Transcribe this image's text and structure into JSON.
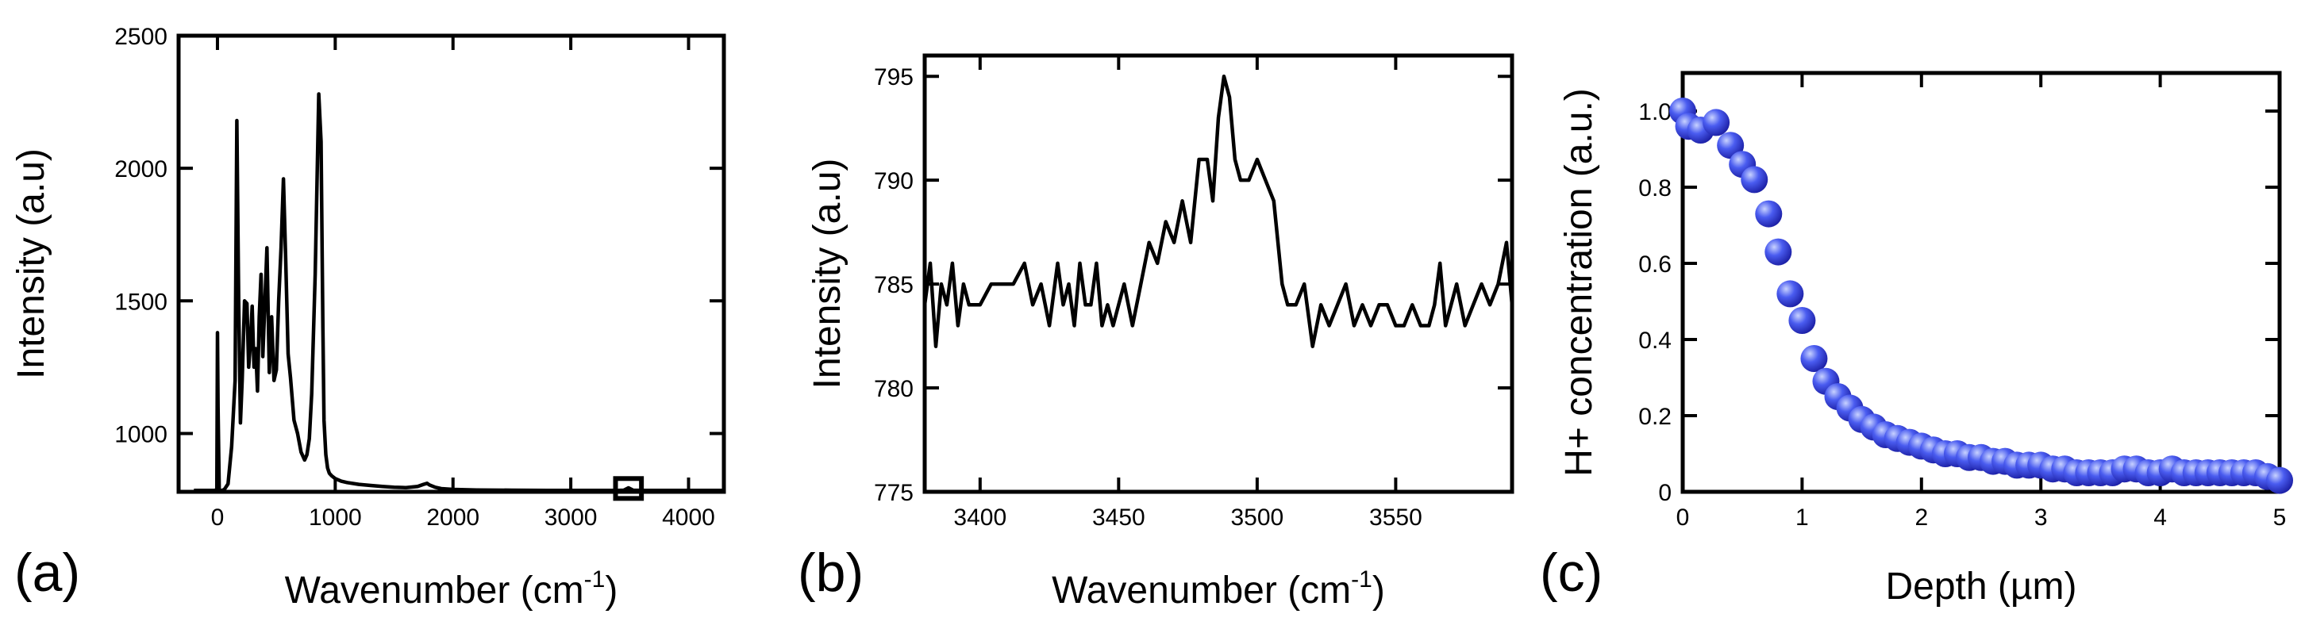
{
  "figure": {
    "panel_labels": [
      "(a)",
      "(b)",
      "(c)"
    ]
  },
  "colors": {
    "trace": "#000000",
    "dot_fill_light": "#c8d2ff",
    "dot_fill_mid": "#4a5cf0",
    "dot_fill_dark": "#1e22a8"
  },
  "chart_data": [
    {
      "type": "line",
      "panel": "(a)",
      "title": "",
      "xlabel": "Wavenumber (cm",
      "xlabel_sup": "-1",
      "xlabel_close": ")",
      "ylabel": "Intensity (a.u)",
      "xlim": [
        -330,
        4300
      ],
      "ylim": [
        780,
        2500
      ],
      "xticks": [
        0,
        1000,
        2000,
        3000,
        4000
      ],
      "xtick_labels": [
        "0",
        "1000",
        "2000",
        "3000",
        "4000"
      ],
      "yticks": [
        1000,
        1500,
        2000,
        2500
      ],
      "ytick_labels": [
        "1000",
        "1500",
        "2000",
        "2500"
      ],
      "grid": false,
      "series": [
        {
          "x": [
            -200,
            -20,
            -5,
            0,
            5,
            15,
            40,
            60,
            90,
            120,
            150,
            165,
            180,
            195,
            210,
            230,
            250,
            265,
            280,
            295,
            310,
            325,
            340,
            355,
            370,
            385,
            400,
            420,
            440,
            460,
            480,
            500,
            520,
            540,
            560,
            580,
            600,
            620,
            650,
            680,
            710,
            740,
            760,
            780,
            800,
            830,
            860,
            880,
            895,
            905,
            920,
            935,
            950,
            970,
            1000,
            1050,
            1100,
            1200,
            1300,
            1400,
            1500,
            1600,
            1700,
            1750,
            1780,
            1800,
            1850,
            1900,
            2000,
            2200,
            2500,
            2800,
            3000,
            3200,
            3400,
            3450,
            3490,
            3530,
            3600,
            3800,
            4000,
            4100,
            4200,
            4300
          ],
          "y": [
            785,
            785,
            790,
            1380,
            1100,
            785,
            785,
            790,
            810,
            950,
            1200,
            2180,
            1500,
            1040,
            1200,
            1500,
            1490,
            1250,
            1340,
            1480,
            1250,
            1320,
            1160,
            1440,
            1600,
            1290,
            1460,
            1700,
            1230,
            1440,
            1200,
            1240,
            1500,
            1700,
            1960,
            1650,
            1300,
            1210,
            1050,
            1000,
            930,
            900,
            920,
            980,
            1150,
            1600,
            2280,
            2100,
            1400,
            1050,
            920,
            870,
            850,
            840,
            830,
            820,
            815,
            808,
            804,
            800,
            797,
            796,
            800,
            808,
            812,
            806,
            797,
            792,
            789,
            787,
            786,
            785,
            785,
            785,
            785,
            786,
            795,
            786,
            785,
            785,
            785,
            785,
            785,
            785
          ]
        }
      ],
      "annotation": "inset-region-box",
      "box_x_range": [
        3380,
        3600
      ],
      "box_y_range": [
        755,
        830
      ]
    },
    {
      "type": "line",
      "panel": "(b)",
      "title": "",
      "xlabel": "Wavenumber (cm",
      "xlabel_sup": "-1",
      "xlabel_close": ")",
      "ylabel": "Intensity (a.u)",
      "xlim": [
        3380,
        3592
      ],
      "ylim": [
        775,
        796
      ],
      "xticks": [
        3400,
        3450,
        3500,
        3550
      ],
      "xtick_labels": [
        "3400",
        "3450",
        "3500",
        "3550"
      ],
      "yticks": [
        775,
        780,
        785,
        790,
        795
      ],
      "ytick_labels": [
        "775",
        "780",
        "785",
        "790",
        "795"
      ],
      "grid": false,
      "series": [
        {
          "x": [
            3380,
            3382,
            3384,
            3386,
            3388,
            3390,
            3392,
            3394,
            3396,
            3400,
            3404,
            3408,
            3412,
            3416,
            3419,
            3422,
            3425,
            3428,
            3430,
            3432,
            3434,
            3436,
            3438,
            3440,
            3442,
            3444,
            3446,
            3448,
            3450,
            3452,
            3455,
            3458,
            3461,
            3464,
            3467,
            3470,
            3473,
            3476,
            3479,
            3482,
            3484,
            3486,
            3488,
            3490,
            3492,
            3494,
            3497,
            3500,
            3503,
            3506,
            3509,
            3511,
            3514,
            3517,
            3520,
            3523,
            3526,
            3529,
            3532,
            3535,
            3538,
            3541,
            3544,
            3547,
            3550,
            3553,
            3556,
            3559,
            3562,
            3564,
            3566,
            3568,
            3570,
            3572,
            3575,
            3578,
            3581,
            3584,
            3587,
            3590,
            3592
          ],
          "y": [
            784,
            786,
            782,
            785,
            784,
            786,
            783,
            785,
            784,
            784,
            785,
            785,
            785,
            786,
            784,
            785,
            783,
            786,
            784,
            785,
            783,
            786,
            784,
            784,
            786,
            783,
            784,
            783,
            784,
            785,
            783,
            785,
            787,
            786,
            788,
            787,
            789,
            787,
            791,
            791,
            789,
            793,
            795,
            794,
            791,
            790,
            790,
            791,
            790,
            789,
            785,
            784,
            784,
            785,
            782,
            784,
            783,
            784,
            785,
            783,
            784,
            783,
            784,
            784,
            783,
            783,
            784,
            783,
            783,
            784,
            786,
            783,
            784,
            785,
            783,
            784,
            785,
            784,
            785,
            787,
            784
          ]
        }
      ]
    },
    {
      "type": "scatter",
      "panel": "(c)",
      "title": "",
      "xlabel": "Depth (µm)",
      "ylabel": "H+ concentration (a.u.)",
      "xlim": [
        0,
        5
      ],
      "ylim": [
        0,
        1.1
      ],
      "xticks": [
        0,
        1,
        2,
        3,
        4,
        5
      ],
      "xtick_labels": [
        "0",
        "1",
        "2",
        "3",
        "4",
        "5"
      ],
      "yticks": [
        0,
        0.2,
        0.4,
        0.6,
        0.8,
        1.0
      ],
      "ytick_labels": [
        "0",
        "0.2",
        "0.4",
        "0.6",
        "0.8",
        "1.0"
      ],
      "grid": false,
      "series": [
        {
          "x": [
            0.0,
            0.05,
            0.15,
            0.28,
            0.4,
            0.5,
            0.6,
            0.72,
            0.8,
            0.9,
            1.0,
            1.1,
            1.2,
            1.3,
            1.4,
            1.5,
            1.6,
            1.7,
            1.8,
            1.9,
            2.0,
            2.1,
            2.2,
            2.3,
            2.4,
            2.5,
            2.6,
            2.7,
            2.8,
            2.9,
            3.0,
            3.1,
            3.2,
            3.3,
            3.4,
            3.5,
            3.6,
            3.7,
            3.8,
            3.9,
            4.0,
            4.1,
            4.2,
            4.3,
            4.4,
            4.5,
            4.6,
            4.7,
            4.8,
            4.9,
            5.0
          ],
          "y": [
            1.0,
            0.96,
            0.95,
            0.97,
            0.91,
            0.86,
            0.82,
            0.73,
            0.63,
            0.52,
            0.45,
            0.35,
            0.29,
            0.25,
            0.22,
            0.19,
            0.17,
            0.15,
            0.14,
            0.13,
            0.12,
            0.11,
            0.1,
            0.1,
            0.09,
            0.09,
            0.08,
            0.08,
            0.07,
            0.07,
            0.07,
            0.06,
            0.06,
            0.05,
            0.05,
            0.05,
            0.05,
            0.06,
            0.06,
            0.05,
            0.05,
            0.06,
            0.05,
            0.05,
            0.05,
            0.05,
            0.05,
            0.05,
            0.05,
            0.04,
            0.03
          ]
        }
      ]
    }
  ]
}
